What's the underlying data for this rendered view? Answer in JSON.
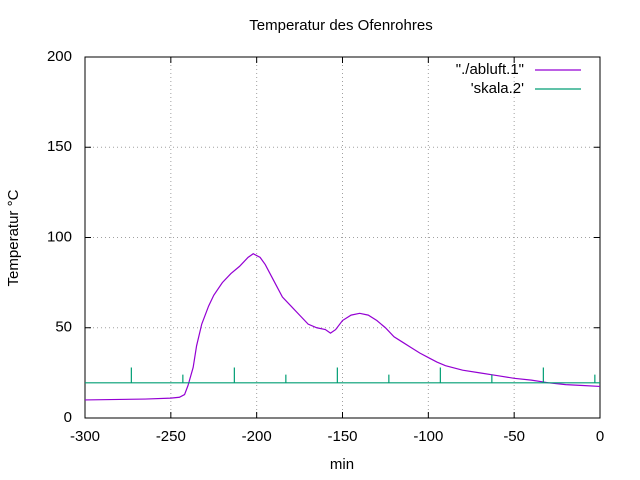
{
  "chart_data": {
    "type": "line",
    "title": "Temperatur des Ofenrohres",
    "xlabel": "min",
    "ylabel": "Temperatur °C",
    "xlim": [
      -300,
      0
    ],
    "ylim": [
      0,
      200
    ],
    "xticks": [
      -300,
      -250,
      -200,
      -150,
      -100,
      -50,
      0
    ],
    "yticks": [
      0,
      50,
      100,
      150,
      200
    ],
    "grid": true,
    "legend": "top-right",
    "series": [
      {
        "name": "\"./abluft.1\"",
        "color": "#9400d3",
        "x": [
          -300,
          -265,
          -250,
          -245,
          -242,
          -240,
          -237,
          -235,
          -232,
          -228,
          -225,
          -220,
          -215,
          -210,
          -205,
          -202,
          -198,
          -195,
          -190,
          -185,
          -180,
          -175,
          -170,
          -165,
          -160,
          -157,
          -154,
          -150,
          -145,
          -140,
          -135,
          -130,
          -125,
          -120,
          -115,
          -110,
          -105,
          -100,
          -95,
          -90,
          -80,
          -70,
          -60,
          -50,
          -40,
          -30,
          -20,
          -10,
          0
        ],
        "values": [
          10,
          10.5,
          11,
          11.5,
          13,
          18,
          28,
          40,
          52,
          62,
          68,
          75,
          80,
          84,
          89,
          91,
          89,
          85,
          76,
          67,
          62,
          57,
          52,
          50,
          49,
          47,
          49,
          54,
          57,
          58,
          57,
          54,
          50,
          45,
          42,
          39,
          36,
          33.5,
          31,
          29,
          26.5,
          25,
          23.5,
          22,
          21,
          19.5,
          18.5,
          18,
          17.5
        ]
      },
      {
        "name": "'skala.2'",
        "color": "#009e73",
        "x": [
          -300,
          -273,
          -273,
          -273,
          -243,
          -243,
          -243,
          -213,
          -213,
          -213,
          -183,
          -183,
          -183,
          -153,
          -153,
          -153,
          -123,
          -123,
          -123,
          -93,
          -93,
          -93,
          -63,
          -63,
          -63,
          -33,
          -33,
          -33,
          -3,
          -3,
          -3,
          0
        ],
        "values": [
          19.5,
          19.5,
          28,
          19.5,
          19.5,
          24,
          19.5,
          19.5,
          28,
          19.5,
          19.5,
          24,
          19.5,
          19.5,
          28,
          19.5,
          19.5,
          24,
          19.5,
          19.5,
          28,
          19.5,
          19.5,
          24,
          19.5,
          19.5,
          28,
          19.5,
          19.5,
          24,
          19.5,
          19.5
        ]
      }
    ]
  }
}
